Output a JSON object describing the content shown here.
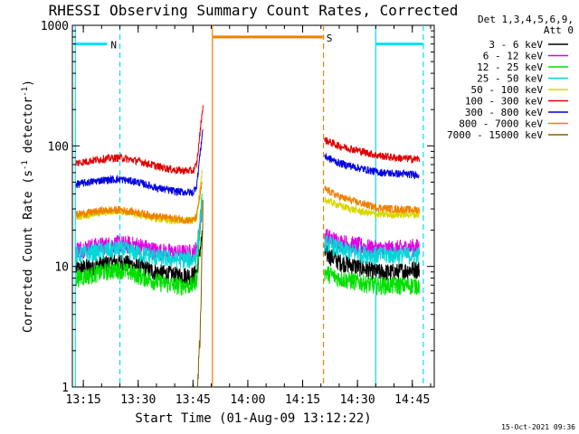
{
  "chart_data": {
    "type": "line",
    "title": "RHESSI Observing Summary Count Rates, Corrected",
    "xlabel": "Start Time (01-Aug-09 13:12:22)",
    "ylabel_main": "Corrected Count Rate (s",
    "ylabel_sup1": "-1",
    "ylabel_mid": " detector",
    "ylabel_sup2": "-1",
    "ylabel_end": ")",
    "y_scale": "log",
    "ylim": [
      1,
      1000
    ],
    "xlim": [
      "13:12",
      "14:51"
    ],
    "x_ticks": [
      "13:15",
      "13:30",
      "13:45",
      "14:00",
      "14:15",
      "14:30",
      "14:45"
    ],
    "y_ticks": [
      "1",
      "10",
      "100",
      "1000"
    ],
    "footer": "15-Oct-2021 09:36",
    "legend_header": [
      "Det 1,3,4,5,6,9,",
      "Att 0"
    ],
    "series": [
      {
        "name": "3 - 6 keV",
        "color": "#000000",
        "values_pre": [
          [
            "13:13",
            9.5
          ],
          [
            "13:20",
            10.5
          ],
          [
            "13:25",
            11
          ],
          [
            "13:30",
            10
          ],
          [
            "13:35",
            9
          ],
          [
            "13:40",
            8.5
          ],
          [
            "13:45",
            8.5
          ],
          [
            "13:46",
            9
          ],
          [
            "13:47.5",
            18
          ]
        ],
        "values_post": [
          [
            "14:21",
            13
          ],
          [
            "14:25",
            11
          ],
          [
            "14:30",
            10
          ],
          [
            "14:35",
            9
          ],
          [
            "14:40",
            9
          ],
          [
            "14:45",
            9.5
          ],
          [
            "14:47",
            9.5
          ]
        ]
      },
      {
        "name": "6 - 12 keV",
        "color": "#e000e0",
        "values_pre": [
          [
            "13:13",
            14
          ],
          [
            "13:20",
            15
          ],
          [
            "13:25",
            15.5
          ],
          [
            "13:30",
            15
          ],
          [
            "13:35",
            13.5
          ],
          [
            "13:40",
            13
          ],
          [
            "13:45",
            13
          ],
          [
            "13:46",
            14
          ],
          [
            "13:47.5",
            30
          ]
        ],
        "values_post": [
          [
            "14:21",
            18
          ],
          [
            "14:25",
            16
          ],
          [
            "14:30",
            15
          ],
          [
            "14:35",
            14
          ],
          [
            "14:40",
            14
          ],
          [
            "14:45",
            14.5
          ],
          [
            "14:47",
            14.5
          ]
        ]
      },
      {
        "name": "12 - 25 keV",
        "color": "#00e000",
        "values_pre": [
          [
            "13:13",
            8
          ],
          [
            "13:20",
            9
          ],
          [
            "13:25",
            9.5
          ],
          [
            "13:30",
            8.5
          ],
          [
            "13:35",
            7.5
          ],
          [
            "13:40",
            7
          ],
          [
            "13:45",
            7
          ],
          [
            "13:46",
            8
          ],
          [
            "13:47.5",
            40
          ]
        ],
        "values_post": [
          [
            "14:21",
            9
          ],
          [
            "14:25",
            8
          ],
          [
            "14:30",
            7.5
          ],
          [
            "14:35",
            7
          ],
          [
            "14:40",
            7
          ],
          [
            "14:45",
            7
          ],
          [
            "14:47",
            7
          ]
        ]
      },
      {
        "name": "25 - 50 keV",
        "color": "#00d8d8",
        "values_pre": [
          [
            "13:13",
            12.5
          ],
          [
            "13:20",
            13.5
          ],
          [
            "13:25",
            14
          ],
          [
            "13:30",
            13
          ],
          [
            "13:35",
            12
          ],
          [
            "13:40",
            11.5
          ],
          [
            "13:45",
            11.5
          ],
          [
            "13:46",
            12.5
          ],
          [
            "13:47.5",
            35
          ]
        ],
        "values_post": [
          [
            "14:21",
            16
          ],
          [
            "14:25",
            14
          ],
          [
            "14:30",
            13
          ],
          [
            "14:35",
            12.5
          ],
          [
            "14:40",
            12.5
          ],
          [
            "14:45",
            12.5
          ],
          [
            "14:47",
            12.5
          ]
        ]
      },
      {
        "name": "50 - 100 keV",
        "color": "#d8d800",
        "values_pre": [
          [
            "13:13",
            26
          ],
          [
            "13:20",
            28
          ],
          [
            "13:25",
            29
          ],
          [
            "13:30",
            27
          ],
          [
            "13:35",
            25
          ],
          [
            "13:40",
            24
          ],
          [
            "13:45",
            24
          ],
          [
            "13:46",
            26
          ],
          [
            "13:47.5",
            60
          ]
        ],
        "values_post": [
          [
            "14:21",
            36
          ],
          [
            "14:25",
            32
          ],
          [
            "14:30",
            29
          ],
          [
            "14:35",
            27
          ],
          [
            "14:40",
            27
          ],
          [
            "14:45",
            27
          ],
          [
            "14:47",
            27
          ]
        ]
      },
      {
        "name": "100 - 300 keV",
        "color": "#e00000",
        "values_pre": [
          [
            "13:13",
            72
          ],
          [
            "13:20",
            78
          ],
          [
            "13:25",
            80
          ],
          [
            "13:30",
            75
          ],
          [
            "13:35",
            68
          ],
          [
            "13:40",
            63
          ],
          [
            "13:45",
            62
          ],
          [
            "13:46",
            70
          ],
          [
            "13:47.8",
            230
          ]
        ],
        "values_post": [
          [
            "14:21",
            112
          ],
          [
            "14:25",
            100
          ],
          [
            "14:30",
            92
          ],
          [
            "14:35",
            84
          ],
          [
            "14:40",
            80
          ],
          [
            "14:45",
            78
          ],
          [
            "14:47",
            78
          ]
        ]
      },
      {
        "name": "300 - 800 keV",
        "color": "#0000e0",
        "values_pre": [
          [
            "13:13",
            48
          ],
          [
            "13:20",
            52
          ],
          [
            "13:25",
            53
          ],
          [
            "13:30",
            50
          ],
          [
            "13:35",
            45
          ],
          [
            "13:40",
            42
          ],
          [
            "13:45",
            41
          ],
          [
            "13:46",
            47
          ],
          [
            "13:47.8",
            150
          ]
        ],
        "values_post": [
          [
            "14:21",
            82
          ],
          [
            "14:25",
            72
          ],
          [
            "14:30",
            66
          ],
          [
            "14:35",
            61
          ],
          [
            "14:40",
            59
          ],
          [
            "14:45",
            58
          ],
          [
            "14:47",
            58
          ]
        ]
      },
      {
        "name": "800 - 7000 keV",
        "color": "#f08000",
        "values_pre": [
          [
            "13:13",
            27
          ],
          [
            "13:20",
            29
          ],
          [
            "13:25",
            29.5
          ],
          [
            "13:30",
            28
          ],
          [
            "13:35",
            26
          ],
          [
            "13:40",
            25
          ],
          [
            "13:45",
            24
          ],
          [
            "13:46",
            26
          ],
          [
            "13:47.5",
            50
          ]
        ],
        "values_post": [
          [
            "14:21",
            44
          ],
          [
            "14:25",
            38
          ],
          [
            "14:30",
            34
          ],
          [
            "14:35",
            31
          ],
          [
            "14:40",
            30
          ],
          [
            "14:45",
            29.5
          ],
          [
            "14:47",
            29.5
          ]
        ]
      },
      {
        "name": "7000 - 15000 keV",
        "color": "#806000",
        "values_pre": [
          [
            "13:46.2",
            1
          ],
          [
            "13:47",
            3
          ],
          [
            "13:47.8",
            40
          ]
        ],
        "values_post": []
      }
    ],
    "attenuator_bars": [
      {
        "label": "N",
        "color": "#00e0ff",
        "start": "13:12.5",
        "end": "13:21.5",
        "y_value": 700
      },
      {
        "label": "",
        "color": "#00e0ff",
        "start": "14:35",
        "end": "14:48",
        "y_value": 700
      },
      {
        "label": "S",
        "color": "#f08000",
        "start": "13:50.5",
        "end": "14:20.5",
        "y_value": 800
      }
    ],
    "vertical_lines": [
      {
        "time": "13:12.8",
        "color": "#00e0ff",
        "style": "solid"
      },
      {
        "time": "13:25",
        "color": "#00e0ff",
        "style": "dashed"
      },
      {
        "time": "13:50.3",
        "color": "#f08000",
        "style": "solid"
      },
      {
        "time": "14:20.7",
        "color": "#f08000",
        "style": "dashed"
      },
      {
        "time": "14:35",
        "color": "#00e0ff",
        "style": "solid"
      },
      {
        "time": "14:48",
        "color": "#00e0ff",
        "style": "dashed"
      }
    ],
    "grid": false,
    "legend_position": "right"
  }
}
